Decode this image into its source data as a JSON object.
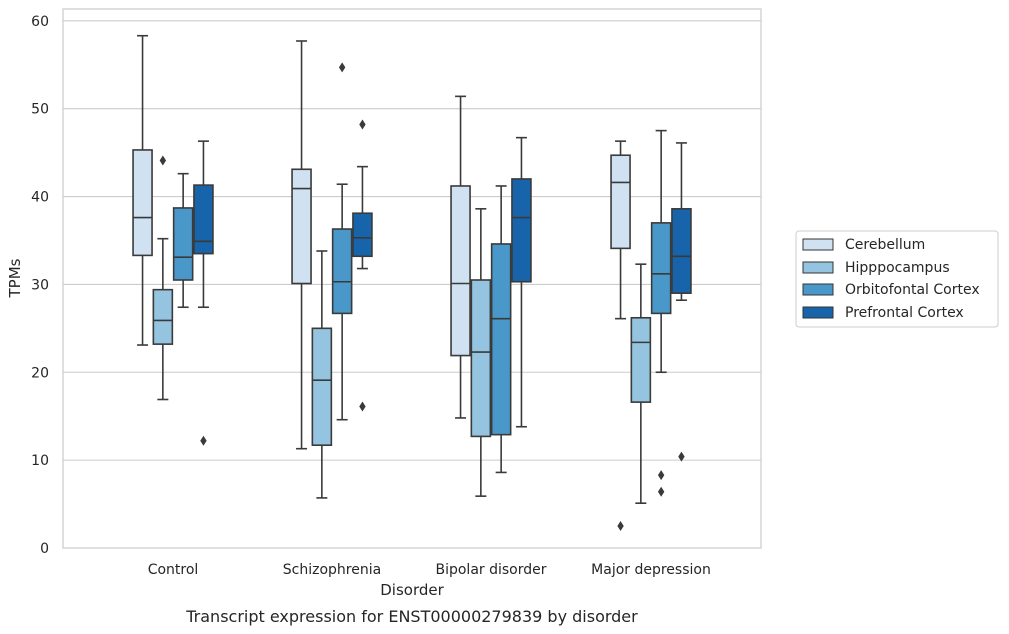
{
  "chart_data": {
    "type": "box",
    "caption": "Transcript expression for ENST00000279839 by disorder",
    "xlabel": "Disorder",
    "ylabel": "TPMs",
    "ylim": [
      0,
      61.5
    ],
    "yticks": [
      0,
      10,
      20,
      30,
      40,
      50,
      60
    ],
    "grid": "horizontal",
    "legend_position": "right",
    "categories": [
      "Control",
      "Schizophrenia",
      "Bipolar disorder",
      "Major depression"
    ],
    "series": [
      {
        "name": "Cerebellum",
        "color": "#d0e1f2",
        "boxes": [
          {
            "whislo": 23.1,
            "q1": 33.3,
            "med": 37.6,
            "q3": 45.3,
            "whishi": 58.3,
            "fliers": []
          },
          {
            "whislo": 11.3,
            "q1": 30.1,
            "med": 40.9,
            "q3": 43.1,
            "whishi": 57.7,
            "fliers": []
          },
          {
            "whislo": 14.8,
            "q1": 21.9,
            "med": 30.1,
            "q3": 41.2,
            "whishi": 51.4,
            "fliers": []
          },
          {
            "whislo": 26.1,
            "q1": 34.1,
            "med": 41.6,
            "q3": 44.7,
            "whishi": 46.3,
            "fliers": [
              2.5
            ]
          }
        ]
      },
      {
        "name": "Hipppocampus",
        "color": "#94c4df",
        "boxes": [
          {
            "whislo": 16.9,
            "q1": 23.2,
            "med": 25.9,
            "q3": 29.4,
            "whishi": 35.2,
            "fliers": [
              44.1
            ]
          },
          {
            "whislo": 5.7,
            "q1": 11.7,
            "med": 19.1,
            "q3": 25.0,
            "whishi": 33.8,
            "fliers": []
          },
          {
            "whislo": 5.9,
            "q1": 12.7,
            "med": 22.3,
            "q3": 30.5,
            "whishi": 38.6,
            "fliers": []
          },
          {
            "whislo": 5.1,
            "q1": 16.6,
            "med": 23.4,
            "q3": 26.2,
            "whishi": 32.3,
            "fliers": []
          }
        ]
      },
      {
        "name": "Orbitofontal Cortex",
        "color": "#4a98c9",
        "boxes": [
          {
            "whislo": 27.4,
            "q1": 30.5,
            "med": 33.1,
            "q3": 38.7,
            "whishi": 42.6,
            "fliers": []
          },
          {
            "whislo": 14.6,
            "q1": 26.7,
            "med": 30.3,
            "q3": 36.3,
            "whishi": 41.4,
            "fliers": [
              54.7
            ]
          },
          {
            "whislo": 8.6,
            "q1": 12.9,
            "med": 26.1,
            "q3": 34.6,
            "whishi": 41.2,
            "fliers": []
          },
          {
            "whislo": 20.0,
            "q1": 26.7,
            "med": 31.2,
            "q3": 37.0,
            "whishi": 47.5,
            "fliers": [
              8.3,
              6.4
            ]
          }
        ]
      },
      {
        "name": "Prefrontal Cortex",
        "color": "#1764ab",
        "boxes": [
          {
            "whislo": 27.4,
            "q1": 33.5,
            "med": 34.9,
            "q3": 41.3,
            "whishi": 46.3,
            "fliers": [
              12.2
            ]
          },
          {
            "whislo": 31.8,
            "q1": 33.2,
            "med": 35.3,
            "q3": 38.1,
            "whishi": 43.4,
            "fliers": [
              48.2,
              16.1
            ]
          },
          {
            "whislo": 13.8,
            "q1": 30.3,
            "med": 37.6,
            "q3": 42.0,
            "whishi": 46.7,
            "fliers": []
          },
          {
            "whislo": 28.2,
            "q1": 29.0,
            "med": 33.2,
            "q3": 38.6,
            "whishi": 46.1,
            "fliers": [
              10.4
            ]
          }
        ]
      }
    ]
  }
}
